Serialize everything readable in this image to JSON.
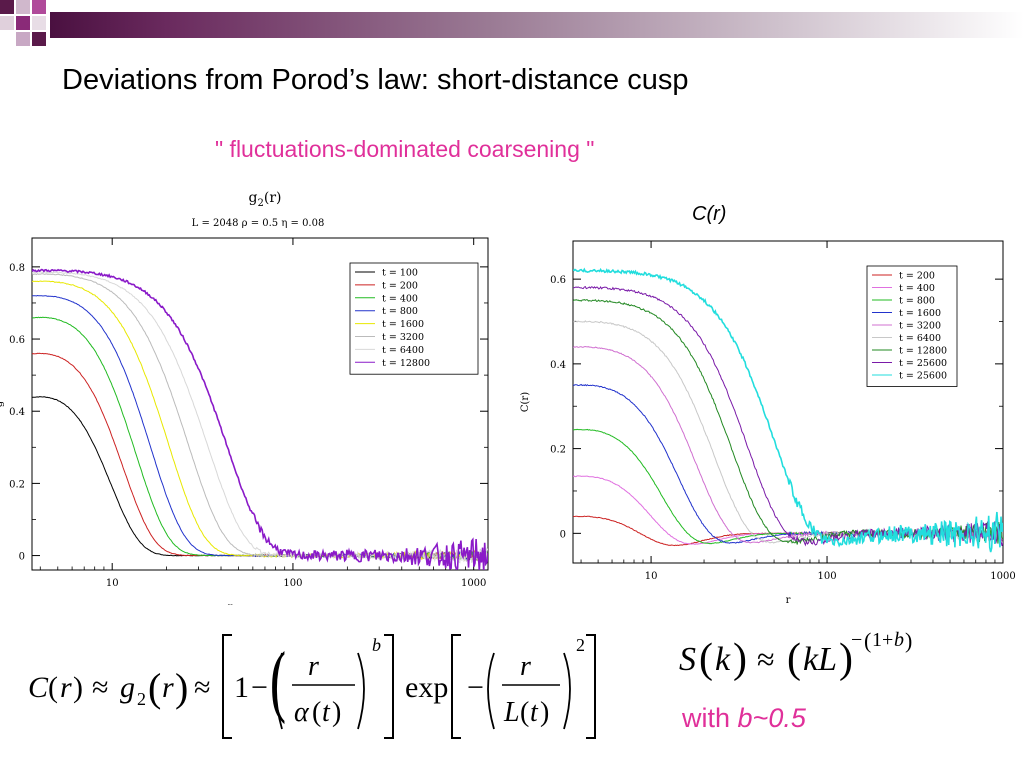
{
  "slide": {
    "title": "Deviations from Porod’s law: short-distance cusp",
    "subtitle": "\" fluctuations-dominated coarsening \"",
    "right_chart_caption": "C(r)",
    "note_prefix": "with ",
    "note_value": "b~0.5"
  },
  "formulas": {
    "left": "C(r) ≈ g2(r) ≈ [1 − (r/α(t))^b] exp[−(r/L(t))^2]",
    "right": "S(k) ≈ (kL)^−(1+b)"
  },
  "colors": {
    "accent": "#e0309a",
    "banner_dark": "#5a1a4a",
    "banner_mid": "#8a2a78",
    "banner_light": "#c0a8c0"
  },
  "chart_data": [
    {
      "type": "line",
      "title": "g2(r)",
      "subtitle": "L = 2048   ρ = 0.5 η = 0.08",
      "xlabel": "r",
      "ylabel": "g",
      "xscale": "log",
      "xlim": [
        3.6,
        1200
      ],
      "ylim": [
        -0.04,
        0.88
      ],
      "xticks": [
        10,
        100,
        1000
      ],
      "xtick_labels": [
        "10",
        "100",
        "1000"
      ],
      "yticks": [
        0,
        0.2,
        0.4,
        0.6,
        0.8
      ],
      "ytick_labels": [
        "0",
        "0.2",
        "0.4",
        "0.6",
        "0.8"
      ],
      "legend_position": "top-right",
      "series": [
        {
          "name": "t = 100",
          "color": "#000000",
          "a0": 0.44,
          "scale": 6.2,
          "noise": 0.002
        },
        {
          "name": "t = 200",
          "color": "#cc2222",
          "a0": 0.56,
          "scale": 7.8,
          "noise": 0.002
        },
        {
          "name": "t = 400",
          "color": "#22bb22",
          "a0": 0.66,
          "scale": 9.8,
          "noise": 0.002
        },
        {
          "name": "t = 800",
          "color": "#2233cc",
          "a0": 0.72,
          "scale": 12.5,
          "noise": 0.002
        },
        {
          "name": "t = 1600",
          "color": "#e8e800",
          "a0": 0.76,
          "scale": 16.5,
          "noise": 0.003
        },
        {
          "name": "t = 3200",
          "color": "#bbbbbb",
          "a0": 0.78,
          "scale": 22,
          "noise": 0.003
        },
        {
          "name": "t = 6400",
          "color": "#d8d8d8",
          "a0": 0.785,
          "scale": 29,
          "noise": 0.004
        },
        {
          "name": "t = 12800",
          "color": "#8a1ac8",
          "a0": 0.79,
          "scale": 38,
          "noise": 0.008
        }
      ]
    },
    {
      "type": "line",
      "title": "",
      "xlabel": "r",
      "ylabel": "C(r)",
      "xscale": "log",
      "xlim": [
        3.6,
        1000
      ],
      "ylim": [
        -0.07,
        0.69
      ],
      "xticks": [
        10,
        100,
        1000
      ],
      "xtick_labels": [
        "10",
        "100",
        "1000"
      ],
      "yticks": [
        0,
        0.2,
        0.4,
        0.6
      ],
      "ytick_labels": [
        "0",
        "0.2",
        "0.4",
        "0.6"
      ],
      "legend_position": "top-right",
      "series": [
        {
          "name": "t = 200",
          "color": "#cc2222",
          "a0": 0.04,
          "scale": 5.2,
          "noise": 0.002
        },
        {
          "name": "t = 400",
          "color": "#e070e0",
          "a0": 0.135,
          "scale": 6.3,
          "noise": 0.002
        },
        {
          "name": "t = 800",
          "color": "#22bb22",
          "a0": 0.245,
          "scale": 7.8,
          "noise": 0.002
        },
        {
          "name": "t = 1600",
          "color": "#2233cc",
          "a0": 0.35,
          "scale": 10.5,
          "noise": 0.003
        },
        {
          "name": "t = 3200",
          "color": "#d070d0",
          "a0": 0.44,
          "scale": 14,
          "noise": 0.003
        },
        {
          "name": "t = 6400",
          "color": "#c8c8c8",
          "a0": 0.5,
          "scale": 18.5,
          "noise": 0.004
        },
        {
          "name": "t = 12800",
          "color": "#228822",
          "a0": 0.55,
          "scale": 24,
          "noise": 0.005
        },
        {
          "name": "t = 25600",
          "color": "#7a1aa8",
          "a0": 0.58,
          "scale": 30,
          "noise": 0.006
        },
        {
          "name": "t = 25600 ",
          "color": "#22dddd",
          "a0": 0.62,
          "scale": 44,
          "noise": 0.009
        }
      ]
    }
  ]
}
